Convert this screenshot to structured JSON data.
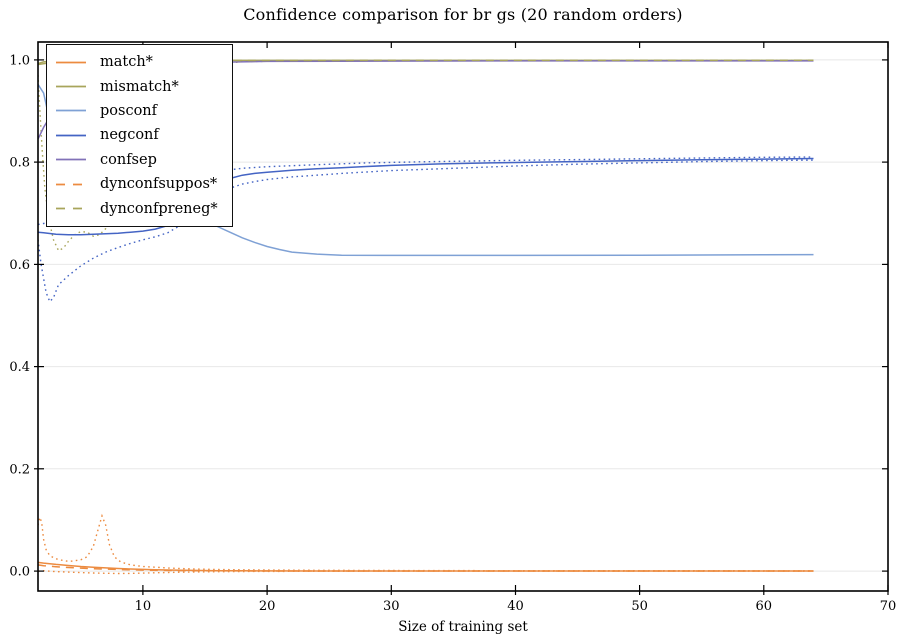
{
  "chart_data": {
    "type": "line",
    "title": "Confidence comparison for br gs (20 random orders)",
    "xlabel": "Size of training set",
    "ylabel": "",
    "xlim": [
      1.55,
      70
    ],
    "ylim": [
      -0.039,
      1.035
    ],
    "grid": "horizontal light-gray lines at each y tick",
    "legend_position": "upper-left",
    "xticks": {
      "values": [
        10,
        20,
        30,
        40,
        50,
        60,
        70
      ],
      "labels": [
        "10",
        "20",
        "30",
        "40",
        "50",
        "60",
        "70"
      ]
    },
    "yticks": {
      "values": [
        0.0,
        0.2,
        0.4,
        0.6,
        0.8,
        1.0
      ],
      "labels": [
        "0.0",
        "0.2",
        "0.4",
        "0.6",
        "0.8",
        "1.0"
      ]
    },
    "colors": {
      "orange": "#ec8b40",
      "olive": "#a8a55b",
      "lightblue": "#7fa1d5",
      "blue": "#4464c4",
      "purple": "#8172b8",
      "grid": "#e8e8e8",
      "spine": "#000000"
    },
    "legend": [
      {
        "label": "match*",
        "color": "orange",
        "style": "solid"
      },
      {
        "label": "mismatch*",
        "color": "olive",
        "style": "solid"
      },
      {
        "label": "posconf",
        "color": "lightblue",
        "style": "solid"
      },
      {
        "label": "negconf",
        "color": "blue",
        "style": "solid"
      },
      {
        "label": "confsep",
        "color": "purple",
        "style": "solid"
      },
      {
        "label": "dynconfsuppos*",
        "color": "orange",
        "style": "dashed"
      },
      {
        "label": "dynconfpreneg*",
        "color": "olive",
        "style": "dashed"
      }
    ],
    "series": [
      {
        "name": "match",
        "color": "orange",
        "style": "solid",
        "points": [
          [
            1.55,
            0.017
          ],
          [
            2,
            0.0155
          ],
          [
            2.5,
            0.0145
          ],
          [
            3,
            0.013
          ],
          [
            4,
            0.0108
          ],
          [
            5,
            0.009
          ],
          [
            6,
            0.0075
          ],
          [
            7,
            0.0061
          ],
          [
            8,
            0.005
          ],
          [
            9,
            0.004
          ],
          [
            10,
            0.0032
          ],
          [
            11,
            0.0026
          ],
          [
            12,
            0.0021
          ],
          [
            13,
            0.0016
          ],
          [
            14,
            0.0013
          ],
          [
            16,
            0.0008
          ],
          [
            18,
            0.0005
          ],
          [
            20,
            0.0004
          ],
          [
            24,
            0.0002
          ],
          [
            30,
            0.0001
          ],
          [
            40,
            0.0001
          ],
          [
            64,
            0.0001
          ]
        ]
      },
      {
        "name": "match-upper-std",
        "color": "orange",
        "style": "dotted",
        "points": [
          [
            1.55,
            0.09
          ],
          [
            1.7,
            0.105
          ],
          [
            1.85,
            0.095
          ],
          [
            2.0,
            0.062
          ],
          [
            2.2,
            0.042
          ],
          [
            2.5,
            0.03
          ],
          [
            3,
            0.024
          ],
          [
            3.5,
            0.021
          ],
          [
            4,
            0.019
          ],
          [
            4.5,
            0.02
          ],
          [
            5,
            0.022
          ],
          [
            5.5,
            0.028
          ],
          [
            6,
            0.048
          ],
          [
            6.4,
            0.082
          ],
          [
            6.7,
            0.108
          ],
          [
            7,
            0.09
          ],
          [
            7.3,
            0.052
          ],
          [
            7.7,
            0.028
          ],
          [
            8.2,
            0.018
          ],
          [
            9,
            0.012
          ],
          [
            10,
            0.009
          ],
          [
            11,
            0.0075
          ],
          [
            12,
            0.006
          ],
          [
            14,
            0.004
          ],
          [
            16,
            0.003
          ],
          [
            18,
            0.0024
          ],
          [
            20,
            0.002
          ],
          [
            24,
            0.0015
          ],
          [
            30,
            0.0011
          ],
          [
            40,
            0.0008
          ],
          [
            50,
            0.0007
          ],
          [
            64,
            0.0006
          ]
        ]
      },
      {
        "name": "match-lower-std",
        "color": "orange",
        "style": "dotted",
        "points": [
          [
            1.55,
            0.0
          ],
          [
            2,
            0.0005
          ],
          [
            3,
            -0.001
          ],
          [
            4,
            -0.002
          ],
          [
            5,
            -0.003
          ],
          [
            6,
            -0.0038
          ],
          [
            7,
            -0.0044
          ],
          [
            8,
            -0.0048
          ],
          [
            9,
            -0.0046
          ],
          [
            10,
            -0.004
          ],
          [
            11,
            -0.0034
          ],
          [
            12,
            -0.0028
          ],
          [
            13,
            -0.0023
          ],
          [
            14,
            -0.0018
          ],
          [
            16,
            -0.0012
          ],
          [
            18,
            -0.0008
          ],
          [
            20,
            -0.0006
          ],
          [
            24,
            -0.0004
          ],
          [
            30,
            -0.0002
          ],
          [
            40,
            -0.0002
          ],
          [
            64,
            -0.0002
          ]
        ]
      },
      {
        "name": "mismatch",
        "color": "olive",
        "style": "solid",
        "points": [
          [
            1.55,
            0.993
          ],
          [
            2,
            0.996
          ],
          [
            3,
            0.998
          ],
          [
            5,
            0.9985
          ],
          [
            10,
            0.999
          ],
          [
            64,
            0.999
          ]
        ]
      },
      {
        "name": "mismatch-lower-std",
        "color": "olive",
        "style": "dotted",
        "points": [
          [
            1.55,
            0.97
          ],
          [
            1.7,
            0.9
          ],
          [
            1.9,
            0.82
          ],
          [
            2.1,
            0.75
          ],
          [
            2.4,
            0.69
          ],
          [
            2.8,
            0.648
          ],
          [
            3.2,
            0.627
          ],
          [
            3.6,
            0.632
          ],
          [
            4,
            0.645
          ],
          [
            4.5,
            0.658
          ],
          [
            5,
            0.664
          ],
          [
            5.5,
            0.663
          ],
          [
            6,
            0.655
          ],
          [
            6.5,
            0.658
          ],
          [
            7,
            0.67
          ],
          [
            8,
            0.7
          ],
          [
            9,
            0.74
          ],
          [
            10,
            0.79
          ],
          [
            11,
            0.85
          ],
          [
            12,
            0.9
          ],
          [
            13,
            0.945
          ],
          [
            14,
            0.972
          ],
          [
            15,
            0.985
          ],
          [
            16,
            0.992
          ],
          [
            18,
            0.9965
          ],
          [
            22,
            0.998
          ],
          [
            30,
            0.9985
          ],
          [
            64,
            0.999
          ]
        ]
      },
      {
        "name": "posconf",
        "color": "lightblue",
        "style": "solid",
        "points": [
          [
            1.55,
            0.952
          ],
          [
            2,
            0.935
          ],
          [
            2.5,
            0.88
          ],
          [
            3,
            0.835
          ],
          [
            3.5,
            0.81
          ],
          [
            4,
            0.8
          ],
          [
            5,
            0.787
          ],
          [
            6,
            0.777
          ],
          [
            7,
            0.768
          ],
          [
            8,
            0.758
          ],
          [
            9,
            0.748
          ],
          [
            10,
            0.737
          ],
          [
            11,
            0.726
          ],
          [
            12,
            0.715
          ],
          [
            13,
            0.704
          ],
          [
            14,
            0.695
          ],
          [
            15,
            0.686
          ],
          [
            16,
            0.674
          ],
          [
            17,
            0.663
          ],
          [
            18,
            0.652
          ],
          [
            19,
            0.643
          ],
          [
            20,
            0.635
          ],
          [
            21,
            0.629
          ],
          [
            22,
            0.624
          ],
          [
            24,
            0.62
          ],
          [
            26,
            0.618
          ],
          [
            30,
            0.6175
          ],
          [
            40,
            0.6175
          ],
          [
            50,
            0.618
          ],
          [
            64,
            0.619
          ]
        ]
      },
      {
        "name": "negconf",
        "color": "blue",
        "style": "solid",
        "points": [
          [
            1.55,
            0.663
          ],
          [
            2,
            0.662
          ],
          [
            3,
            0.659
          ],
          [
            4,
            0.658
          ],
          [
            5,
            0.658
          ],
          [
            6,
            0.659
          ],
          [
            7,
            0.66
          ],
          [
            8,
            0.661
          ],
          [
            9,
            0.663
          ],
          [
            10,
            0.665
          ],
          [
            11,
            0.669
          ],
          [
            12,
            0.676
          ],
          [
            13,
            0.69
          ],
          [
            14,
            0.712
          ],
          [
            15,
            0.733
          ],
          [
            16,
            0.757
          ],
          [
            17,
            0.768
          ],
          [
            18,
            0.7745
          ],
          [
            19,
            0.778
          ],
          [
            20,
            0.78
          ],
          [
            22,
            0.784
          ],
          [
            24,
            0.787
          ],
          [
            26,
            0.789
          ],
          [
            28,
            0.7915
          ],
          [
            30,
            0.7935
          ],
          [
            34,
            0.7965
          ],
          [
            38,
            0.7985
          ],
          [
            42,
            0.8
          ],
          [
            46,
            0.8015
          ],
          [
            50,
            0.803
          ],
          [
            55,
            0.8045
          ],
          [
            60,
            0.806
          ],
          [
            64,
            0.807
          ]
        ]
      },
      {
        "name": "negconf-lower-std",
        "color": "blue",
        "style": "dotted",
        "points": [
          [
            1.55,
            0.648
          ],
          [
            1.8,
            0.6
          ],
          [
            2.2,
            0.545
          ],
          [
            2.5,
            0.527
          ],
          [
            2.8,
            0.535
          ],
          [
            3.2,
            0.56
          ],
          [
            4,
            0.578
          ],
          [
            5,
            0.597
          ],
          [
            6,
            0.612
          ],
          [
            7,
            0.624
          ],
          [
            8,
            0.633
          ],
          [
            9,
            0.641
          ],
          [
            10,
            0.648
          ],
          [
            11,
            0.654
          ],
          [
            12,
            0.662
          ],
          [
            13,
            0.676
          ],
          [
            14,
            0.698
          ],
          [
            15,
            0.718
          ],
          [
            16,
            0.737
          ],
          [
            17,
            0.749
          ],
          [
            18,
            0.757
          ],
          [
            19,
            0.762
          ],
          [
            20,
            0.766
          ],
          [
            22,
            0.771
          ],
          [
            24,
            0.7745
          ],
          [
            26,
            0.778
          ],
          [
            30,
            0.7835
          ],
          [
            35,
            0.788
          ],
          [
            40,
            0.7925
          ],
          [
            45,
            0.796
          ],
          [
            50,
            0.7985
          ],
          [
            55,
            0.801
          ],
          [
            60,
            0.803
          ],
          [
            64,
            0.804
          ]
        ]
      },
      {
        "name": "negconf-upper-std",
        "color": "blue",
        "style": "dotted",
        "points": [
          [
            1.55,
            0.678
          ],
          [
            2,
            0.68
          ],
          [
            3,
            0.684
          ],
          [
            4,
            0.69
          ],
          [
            5,
            0.7
          ],
          [
            6,
            0.713
          ],
          [
            7,
            0.72
          ],
          [
            8,
            0.725
          ],
          [
            9,
            0.728
          ],
          [
            10,
            0.73
          ],
          [
            11,
            0.734
          ],
          [
            12,
            0.74
          ],
          [
            13,
            0.75
          ],
          [
            14,
            0.762
          ],
          [
            15,
            0.772
          ],
          [
            16,
            0.78
          ],
          [
            17,
            0.785
          ],
          [
            18,
            0.788
          ],
          [
            20,
            0.791
          ],
          [
            24,
            0.795
          ],
          [
            28,
            0.7985
          ],
          [
            32,
            0.8005
          ],
          [
            36,
            0.802
          ],
          [
            40,
            0.8035
          ],
          [
            45,
            0.805
          ],
          [
            50,
            0.8065
          ],
          [
            55,
            0.808
          ],
          [
            60,
            0.8095
          ],
          [
            64,
            0.81
          ]
        ]
      },
      {
        "name": "confsep",
        "color": "purple",
        "style": "solid",
        "points": [
          [
            1.55,
            0.845
          ],
          [
            2,
            0.868
          ],
          [
            2.5,
            0.888
          ],
          [
            3,
            0.905
          ],
          [
            4,
            0.93
          ],
          [
            5,
            0.948
          ],
          [
            6,
            0.961
          ],
          [
            7,
            0.97
          ],
          [
            8,
            0.977
          ],
          [
            9,
            0.982
          ],
          [
            10,
            0.986
          ],
          [
            12,
            0.991
          ],
          [
            14,
            0.994
          ],
          [
            16,
            0.9955
          ],
          [
            20,
            0.997
          ],
          [
            26,
            0.9975
          ],
          [
            40,
            0.998
          ],
          [
            64,
            0.998
          ]
        ]
      },
      {
        "name": "dynconfsuppos",
        "color": "orange",
        "style": "dashed",
        "points": [
          [
            1.55,
            0.012
          ],
          [
            2,
            0.0105
          ],
          [
            3,
            0.0085
          ],
          [
            4,
            0.007
          ],
          [
            5,
            0.0058
          ],
          [
            6,
            0.0047
          ],
          [
            7,
            0.0038
          ],
          [
            8,
            0.003
          ],
          [
            9,
            0.0024
          ],
          [
            10,
            0.0019
          ],
          [
            12,
            0.0012
          ],
          [
            14,
            0.0008
          ],
          [
            16,
            0.0005
          ],
          [
            20,
            0.0002
          ],
          [
            30,
            0.0001
          ],
          [
            64,
            0.0001
          ]
        ]
      },
      {
        "name": "dynconfpreneg",
        "color": "olive",
        "style": "dashed",
        "points": [
          [
            1.55,
            0.991
          ],
          [
            3,
            0.996
          ],
          [
            6,
            0.998
          ],
          [
            10,
            0.9988
          ],
          [
            64,
            0.9992
          ]
        ]
      }
    ]
  }
}
